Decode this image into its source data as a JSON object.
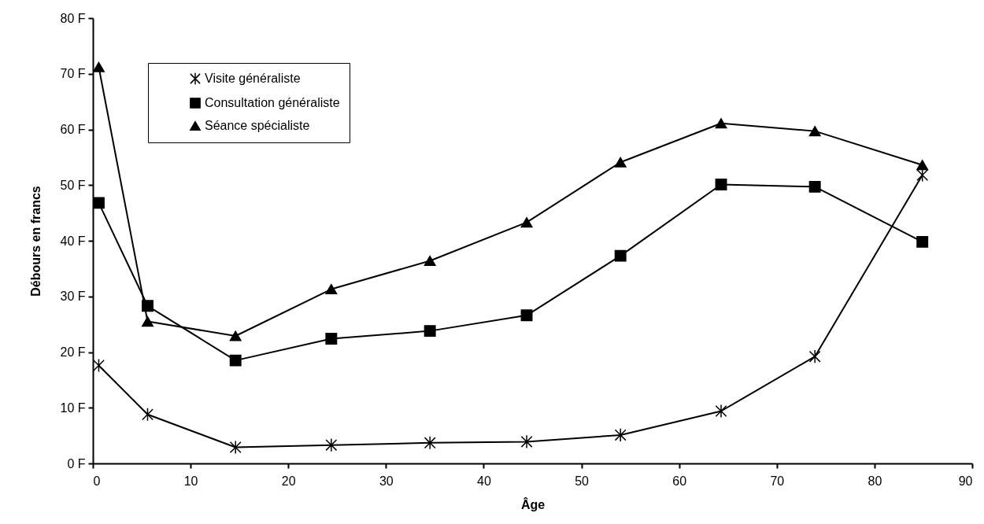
{
  "chart_data": {
    "type": "line",
    "xlabel": "Âge",
    "ylabel": "Débours en francs",
    "x": [
      0.6,
      5.6,
      14.6,
      24.4,
      34.5,
      44.4,
      54,
      64.3,
      73.9,
      84.9
    ],
    "series": [
      {
        "name": "Visite généraliste",
        "color": "#000000",
        "marker": "cross",
        "values": [
          17.6,
          8.8,
          2.9,
          3.3,
          3.7,
          3.9,
          5.1,
          9.4,
          19.2,
          51.8
        ]
      },
      {
        "name": "Consultation généraliste",
        "color": "#000000",
        "marker": "square",
        "values": [
          46.8,
          28.3,
          18.5,
          22.4,
          23.8,
          26.6,
          37.3,
          50.1,
          49.7,
          39.8
        ]
      },
      {
        "name": "Séance spécialiste",
        "color": "#000000",
        "marker": "triangle",
        "values": [
          71.2,
          25.5,
          22.9,
          31.3,
          36.4,
          43.3,
          54.1,
          61.1,
          59.7,
          53.6
        ]
      }
    ],
    "xlim": [
      0,
      90
    ],
    "xticks": [
      0,
      10,
      20,
      30,
      40,
      50,
      60,
      70,
      80,
      90
    ],
    "ylim": [
      0,
      80
    ],
    "yticks": [
      {
        "value": 0,
        "label": "0 F"
      },
      {
        "value": 10,
        "label": "10 F"
      },
      {
        "value": 20,
        "label": "20 F"
      },
      {
        "value": 30,
        "label": "30 F"
      },
      {
        "value": 40,
        "label": "40 F"
      },
      {
        "value": 50,
        "label": "50 F"
      },
      {
        "value": 60,
        "label": "60 F"
      },
      {
        "value": 70,
        "label": "70 F"
      },
      {
        "value": 80,
        "label": "80 F"
      }
    ],
    "grid": false,
    "legend": "top left",
    "line_style": "solid"
  }
}
